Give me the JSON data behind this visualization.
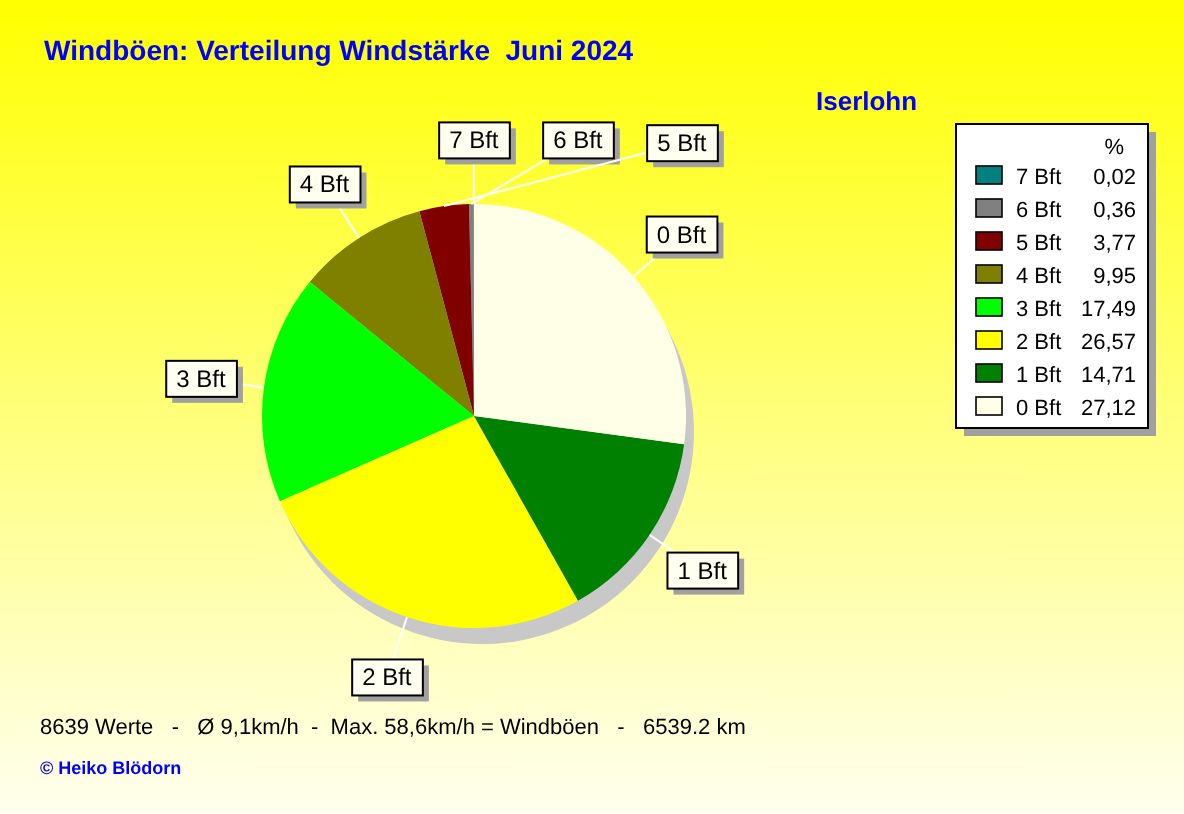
{
  "chart_data": {
    "type": "pie",
    "title": "Windböen: Verteilung Windstärke  Juni 2024",
    "subtitle": "Iserlohn",
    "categories": [
      "7 Bft",
      "6 Bft",
      "5 Bft",
      "4 Bft",
      "3 Bft",
      "2 Bft",
      "1 Bft",
      "0 Bft"
    ],
    "values": [
      0.02,
      0.36,
      3.77,
      9.95,
      17.49,
      26.57,
      14.71,
      27.12
    ],
    "value_labels": [
      "0,02",
      "0,36",
      "3,77",
      "9,95",
      "17,49",
      "26,57",
      "14,71",
      "27,12"
    ],
    "colors": [
      "#008080",
      "#808080",
      "#800000",
      "#808000",
      "#00ff00",
      "#ffff00",
      "#008000",
      "#ffffe8"
    ],
    "legend": "top right",
    "legend_title": "%",
    "annotations": [
      "8639 Werte   -   Ø 9,1km/h  -  Max. 58,6km/h = Windböen   -   6539.2 km",
      "© Heiko Blödorn"
    ]
  }
}
